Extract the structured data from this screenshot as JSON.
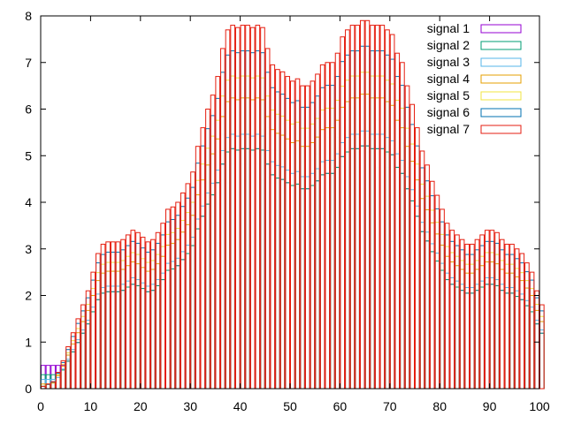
{
  "chart_data": {
    "type": "bar",
    "style": "overlaid histogram steps (open bars), gnuplot style",
    "title": "",
    "xlabel": "",
    "ylabel": "",
    "xlim": [
      0,
      100
    ],
    "ylim": [
      0,
      8
    ],
    "bin_width": 1,
    "grid": false,
    "legend_position": "top-right",
    "x_ticks": [
      "0",
      "10",
      "20",
      "30",
      "40",
      "50",
      "60",
      "70",
      "80",
      "90",
      "100"
    ],
    "y_ticks": [
      "0",
      "1",
      "2",
      "3",
      "4",
      "5",
      "6",
      "7",
      "8"
    ],
    "colors": [
      "#9400d3",
      "#009e73",
      "#56b4e9",
      "#e69f00",
      "#f0e442",
      "#0072b2",
      "#e51e10"
    ],
    "series_names": [
      "signal 1",
      "signal 2",
      "signal 3",
      "signal 4",
      "signal 5",
      "signal 6",
      "signal 7"
    ],
    "signal7_values": [
      0.05,
      0.1,
      0.15,
      0.35,
      0.6,
      0.9,
      1.2,
      1.5,
      1.8,
      2.1,
      2.5,
      2.9,
      3.1,
      3.15,
      3.15,
      3.15,
      3.2,
      3.3,
      3.4,
      3.35,
      3.25,
      3.15,
      3.2,
      3.35,
      3.55,
      3.85,
      3.9,
      4.0,
      4.2,
      4.4,
      4.65,
      5.2,
      5.6,
      6.0,
      6.3,
      6.7,
      7.3,
      7.7,
      7.8,
      7.75,
      7.8,
      7.8,
      7.75,
      7.8,
      7.75,
      7.3,
      6.95,
      6.85,
      6.8,
      6.7,
      6.6,
      6.65,
      6.5,
      6.5,
      6.6,
      6.75,
      6.95,
      7.0,
      7.0,
      7.2,
      7.55,
      7.7,
      7.8,
      7.8,
      7.9,
      7.9,
      7.8,
      7.8,
      7.8,
      7.7,
      7.6,
      7.2,
      7.0,
      6.5,
      6.1,
      5.6,
      5.1,
      4.8,
      4.45,
      4.15,
      3.85,
      3.55,
      3.4,
      3.3,
      3.2,
      3.1,
      3.1,
      3.2,
      3.3,
      3.4,
      3.4,
      3.35,
      3.2,
      3.1,
      3.1,
      3.0,
      2.9,
      2.7,
      2.5,
      2.1,
      1.8
    ],
    "series_scales": [
      0.66,
      0.66,
      0.7,
      0.8,
      0.86,
      0.93,
      1.0
    ],
    "series_floor": [
      0.5,
      0.3,
      0.2,
      0.1,
      0.05,
      0.03,
      0.0
    ]
  }
}
